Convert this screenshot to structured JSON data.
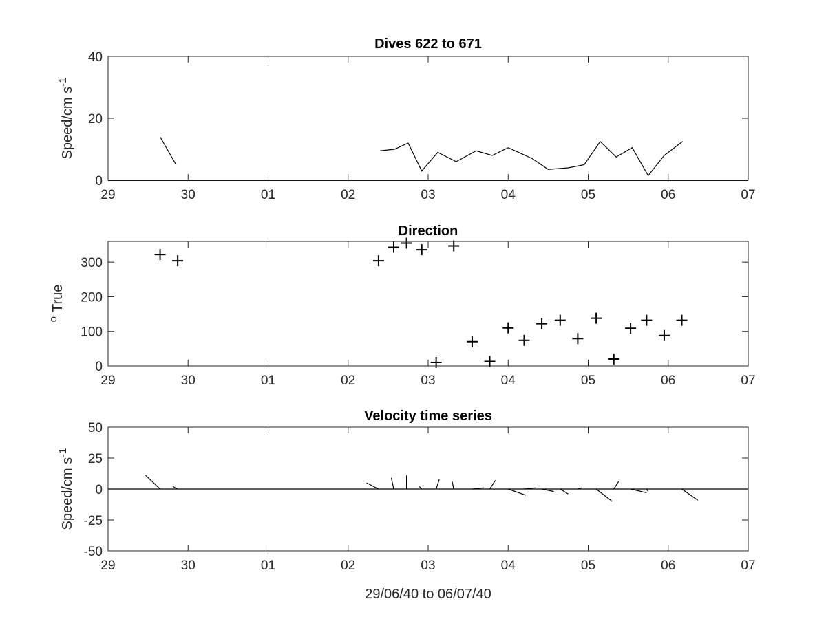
{
  "chart_data": [
    {
      "type": "line",
      "title": "Dives 622 to 671",
      "ylabel": "Speed/cm s",
      "ylabel_superscript": "-1",
      "xlabel": "",
      "xticks": [
        "29",
        "30",
        "01",
        "02",
        "03",
        "04",
        "05",
        "06",
        "07"
      ],
      "ylim": [
        0,
        40
      ],
      "yticks": [
        "0",
        "20",
        "40"
      ],
      "series": [
        {
          "x": [
            0.65,
            0.85
          ],
          "y": [
            14,
            5
          ]
        },
        {
          "x": [
            3.4,
            3.58,
            3.75,
            3.92,
            4.12,
            4.35,
            4.6,
            4.8,
            5.0,
            5.3,
            5.5,
            5.75,
            5.95,
            6.15,
            6.35,
            6.55,
            6.75,
            6.95,
            7.18
          ],
          "y": [
            9.5,
            10,
            12,
            3,
            9,
            6,
            9.5,
            8,
            10.5,
            7,
            3.5,
            4,
            5,
            12.5,
            7.5,
            10.5,
            1.5,
            8,
            12.5
          ]
        }
      ],
      "baseline": 0
    },
    {
      "type": "scatter",
      "title": "Direction",
      "ylabel": "True",
      "ylabel_prefix_superscript": "o",
      "xlabel": "",
      "xticks": [
        "29",
        "30",
        "01",
        "02",
        "03",
        "04",
        "05",
        "06",
        "07"
      ],
      "ylim": [
        0,
        360
      ],
      "yticks": [
        "0",
        "100",
        "200",
        "300"
      ],
      "points": {
        "x": [
          0.65,
          0.87,
          3.38,
          3.57,
          3.73,
          3.92,
          4.1,
          4.32,
          4.55,
          4.77,
          5.0,
          5.2,
          5.42,
          5.65,
          5.87,
          6.1,
          6.32,
          6.53,
          6.73,
          6.95,
          7.17
        ],
        "y": [
          322,
          304,
          304,
          343,
          355,
          336,
          10,
          347,
          70,
          13,
          110,
          74,
          122,
          132,
          79,
          138,
          20,
          109,
          132,
          88,
          132
        ]
      }
    },
    {
      "type": "line",
      "title": "Velocity time series",
      "ylabel": "Speed/cm s",
      "ylabel_superscript": "-1",
      "xlabel": "29/06/40 to 06/07/40",
      "xticks": [
        "29",
        "30",
        "01",
        "02",
        "03",
        "04",
        "05",
        "06",
        "07"
      ],
      "ylim": [
        -50,
        50
      ],
      "yticks": [
        "-50",
        "-25",
        "0",
        "25",
        "50"
      ],
      "stick_vectors": [
        {
          "x": 0.65,
          "dx": -0.18,
          "dy": 11
        },
        {
          "x": 0.87,
          "dx": -0.06,
          "dy": 2
        },
        {
          "x": 3.38,
          "dx": -0.15,
          "dy": 5
        },
        {
          "x": 3.57,
          "dx": -0.03,
          "dy": 9
        },
        {
          "x": 3.73,
          "dx": 0.0,
          "dy": 11
        },
        {
          "x": 3.92,
          "dx": -0.03,
          "dy": 2
        },
        {
          "x": 4.1,
          "dx": 0.04,
          "dy": 8
        },
        {
          "x": 4.32,
          "dx": -0.02,
          "dy": 6
        },
        {
          "x": 4.55,
          "dx": 0.15,
          "dy": 1
        },
        {
          "x": 4.77,
          "dx": 0.07,
          "dy": 7
        },
        {
          "x": 5.0,
          "dx": 0.22,
          "dy": -5
        },
        {
          "x": 5.2,
          "dx": 0.15,
          "dy": 1
        },
        {
          "x": 5.42,
          "dx": 0.15,
          "dy": -2
        },
        {
          "x": 5.65,
          "dx": 0.1,
          "dy": -4
        },
        {
          "x": 5.87,
          "dx": 0.05,
          "dy": 1
        },
        {
          "x": 6.1,
          "dx": 0.2,
          "dy": -10
        },
        {
          "x": 6.32,
          "dx": 0.06,
          "dy": 6
        },
        {
          "x": 6.53,
          "dx": 0.2,
          "dy": -3
        },
        {
          "x": 6.73,
          "dx": 0.02,
          "dy": -2
        },
        {
          "x": 7.17,
          "dx": 0.2,
          "dy": -9
        }
      ],
      "baseline": 0
    }
  ]
}
